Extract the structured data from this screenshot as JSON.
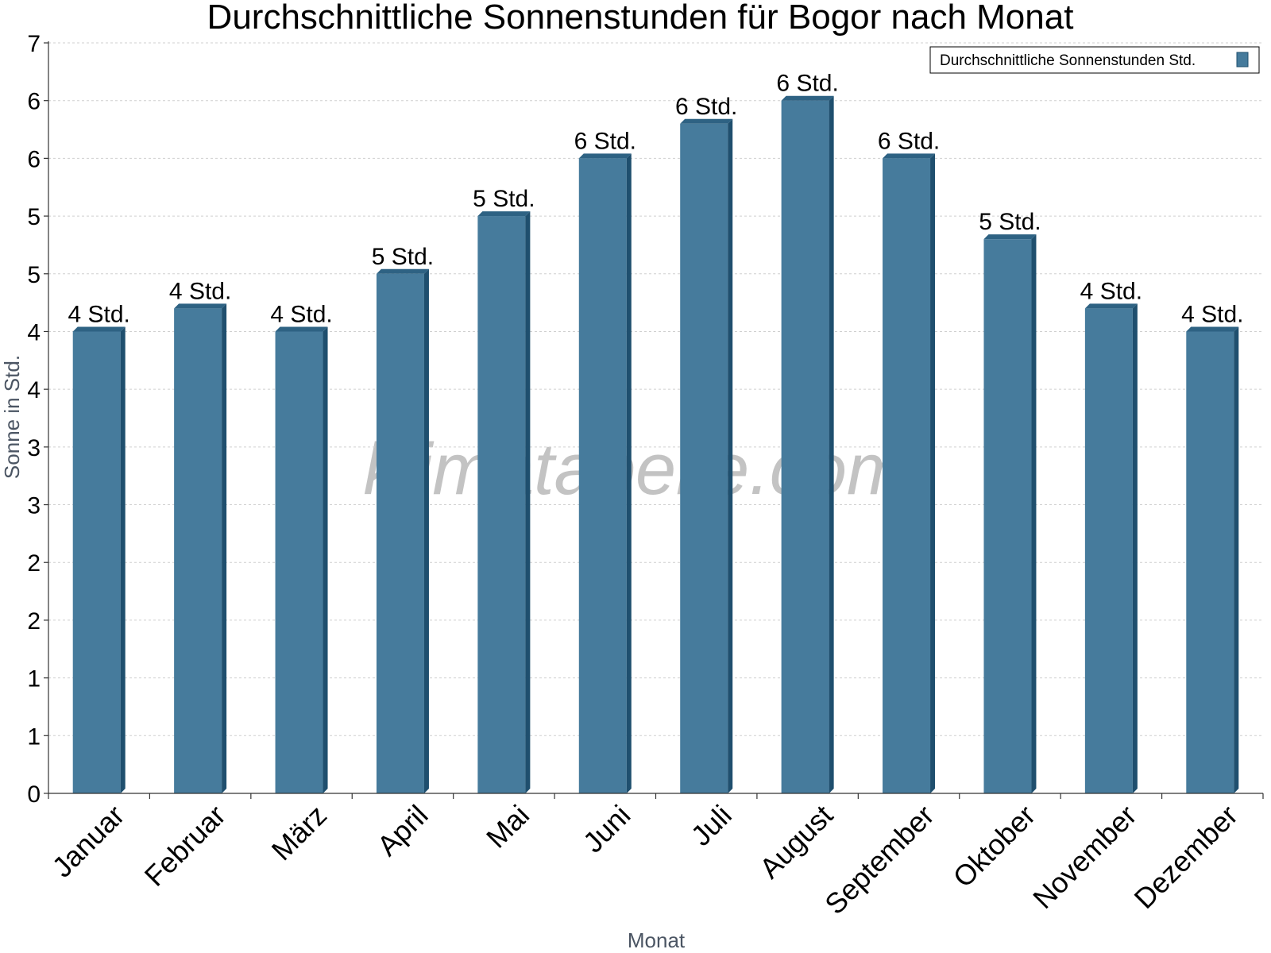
{
  "colors": {
    "bar": "#467b9c",
    "bar_side": "#1f4f6e",
    "bar_top": "#2e6283",
    "axis": "#333333",
    "grid": "#cfcfcf",
    "background": "#ffffff"
  },
  "watermark": "klimatabelle.com",
  "chart_data": {
    "type": "bar",
    "title": "Durchschnittliche Sonnenstunden für Bogor nach Monat",
    "xlabel": "Monat",
    "ylabel": "Sonne in Std.",
    "categories": [
      "Januar",
      "Februar",
      "März",
      "April",
      "Mai",
      "Juni",
      "Juli",
      "August",
      "September",
      "Oktober",
      "November",
      "Dezember"
    ],
    "series": [
      {
        "name": "Durchschnittliche Sonnenstunden Std.",
        "values": [
          4.0,
          4.2,
          4.0,
          4.5,
          5.0,
          5.5,
          5.8,
          6.0,
          5.5,
          4.8,
          4.2,
          4.0
        ],
        "labels": [
          "4 Std.",
          "4 Std.",
          "4 Std.",
          "5 Std.",
          "5 Std.",
          "6 Std.",
          "6 Std.",
          "6 Std.",
          "6 Std.",
          "5 Std.",
          "4 Std.",
          "4 Std."
        ]
      }
    ],
    "yticks": [
      0,
      0.5,
      1,
      1.5,
      2,
      2.5,
      3,
      3.5,
      4,
      4.5,
      5,
      5.5,
      6,
      6.5
    ],
    "ytick_labels": [
      "0",
      "1",
      "1",
      "2",
      "2",
      "3",
      "3",
      "4",
      "4",
      "5",
      "5",
      "6",
      "6",
      "7"
    ],
    "ylim": [
      0,
      6.5
    ],
    "grid": true,
    "legend_position": "top-right"
  }
}
